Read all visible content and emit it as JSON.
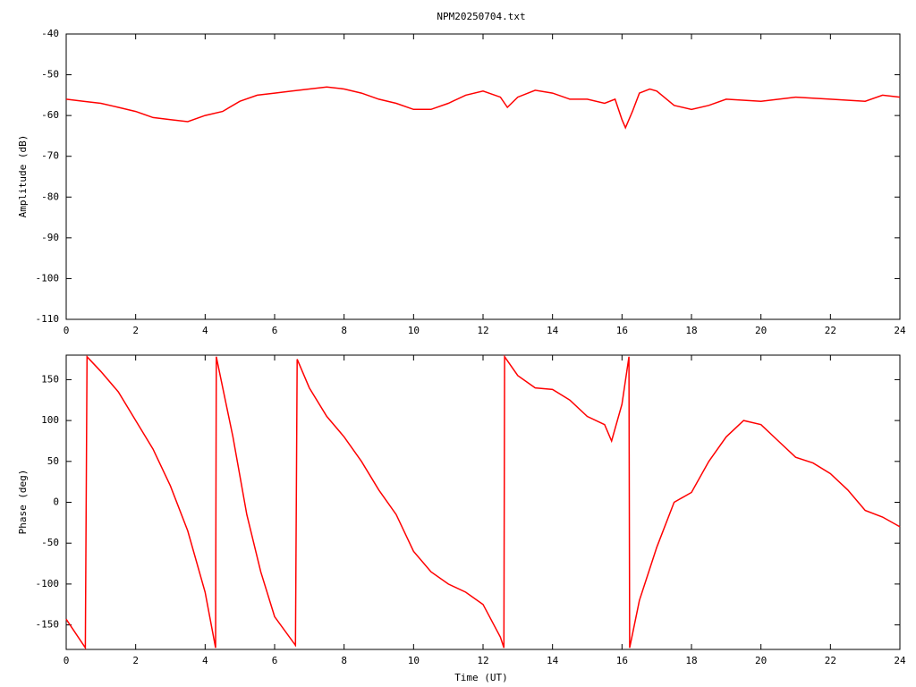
{
  "chart_data": [
    {
      "type": "line",
      "title": "NPM20250704.txt",
      "ylabel": "Amplitude (dB)",
      "color": "#ff0000",
      "x": [
        0,
        0.5,
        1,
        1.5,
        2,
        2.5,
        3,
        3.5,
        4,
        4.5,
        5,
        5.5,
        6,
        6.5,
        7,
        7.5,
        8,
        8.5,
        9,
        9.5,
        10,
        10.5,
        11,
        11.5,
        12,
        12.5,
        12.7,
        13,
        13.5,
        14,
        14.5,
        15,
        15.5,
        15.8,
        16,
        16.1,
        16.3,
        16.5,
        16.8,
        17,
        17.5,
        18,
        18.5,
        19,
        20,
        21,
        22,
        23,
        23.5,
        24
      ],
      "values": [
        -56,
        -56.5,
        -57,
        -58,
        -59,
        -60.5,
        -61,
        -61.5,
        -60,
        -59,
        -56.5,
        -55,
        -54.5,
        -54,
        -53.5,
        -53,
        -53.5,
        -54.5,
        -56,
        -57,
        -58.5,
        -58.5,
        -57,
        -55,
        -54,
        -55.5,
        -58,
        -55.5,
        -53.8,
        -54.5,
        -56,
        -56,
        -57,
        -56,
        -61,
        -63,
        -59,
        -54.5,
        -53.5,
        -54,
        -57.5,
        -58.5,
        -57.5,
        -56,
        -56.5,
        -55.5,
        -56,
        -56.5,
        -55,
        -55.5
      ],
      "xlim": [
        0,
        24
      ],
      "ylim": [
        -110,
        -40
      ],
      "xticks": [
        0,
        2,
        4,
        6,
        8,
        10,
        12,
        14,
        16,
        18,
        20,
        22,
        24
      ],
      "yticks": [
        -110,
        -100,
        -90,
        -80,
        -70,
        -60,
        -50,
        -40
      ]
    },
    {
      "type": "line",
      "xlabel": "Time (UT)",
      "ylabel": "Phase (deg)",
      "color": "#ff0000",
      "x": [
        0,
        0.55,
        0.6,
        1,
        1.5,
        2,
        2.5,
        3,
        3.5,
        4,
        4.3,
        4.32,
        4.8,
        5.2,
        5.6,
        6,
        6.6,
        6.65,
        7,
        7.5,
        8,
        8.5,
        9,
        9.5,
        10,
        10.5,
        11,
        11.5,
        12,
        12.5,
        12.6,
        12.62,
        13,
        13.5,
        14,
        14.5,
        15,
        15.5,
        15.7,
        16,
        16.2,
        16.22,
        16.5,
        17,
        17.5,
        18,
        18.5,
        19,
        19.5,
        20,
        20.5,
        21,
        21.5,
        22,
        22.5,
        23,
        23.5,
        24
      ],
      "values": [
        -143,
        -178,
        178,
        160,
        135,
        100,
        65,
        20,
        -35,
        -110,
        -178,
        178,
        80,
        -15,
        -85,
        -140,
        -175,
        175,
        140,
        105,
        80,
        50,
        15,
        -15,
        -60,
        -85,
        -100,
        -110,
        -125,
        -165,
        -178,
        178,
        155,
        140,
        138,
        125,
        105,
        95,
        75,
        120,
        178,
        -178,
        -120,
        -55,
        0,
        12,
        50,
        80,
        100,
        95,
        75,
        55,
        48,
        35,
        15,
        -10,
        -18,
        -30
      ],
      "xlim": [
        0,
        24
      ],
      "ylim": [
        -180,
        180
      ],
      "xticks": [
        0,
        2,
        4,
        6,
        8,
        10,
        12,
        14,
        16,
        18,
        20,
        22,
        24
      ],
      "yticks": [
        -150,
        -100,
        -50,
        0,
        50,
        100,
        150
      ]
    }
  ]
}
